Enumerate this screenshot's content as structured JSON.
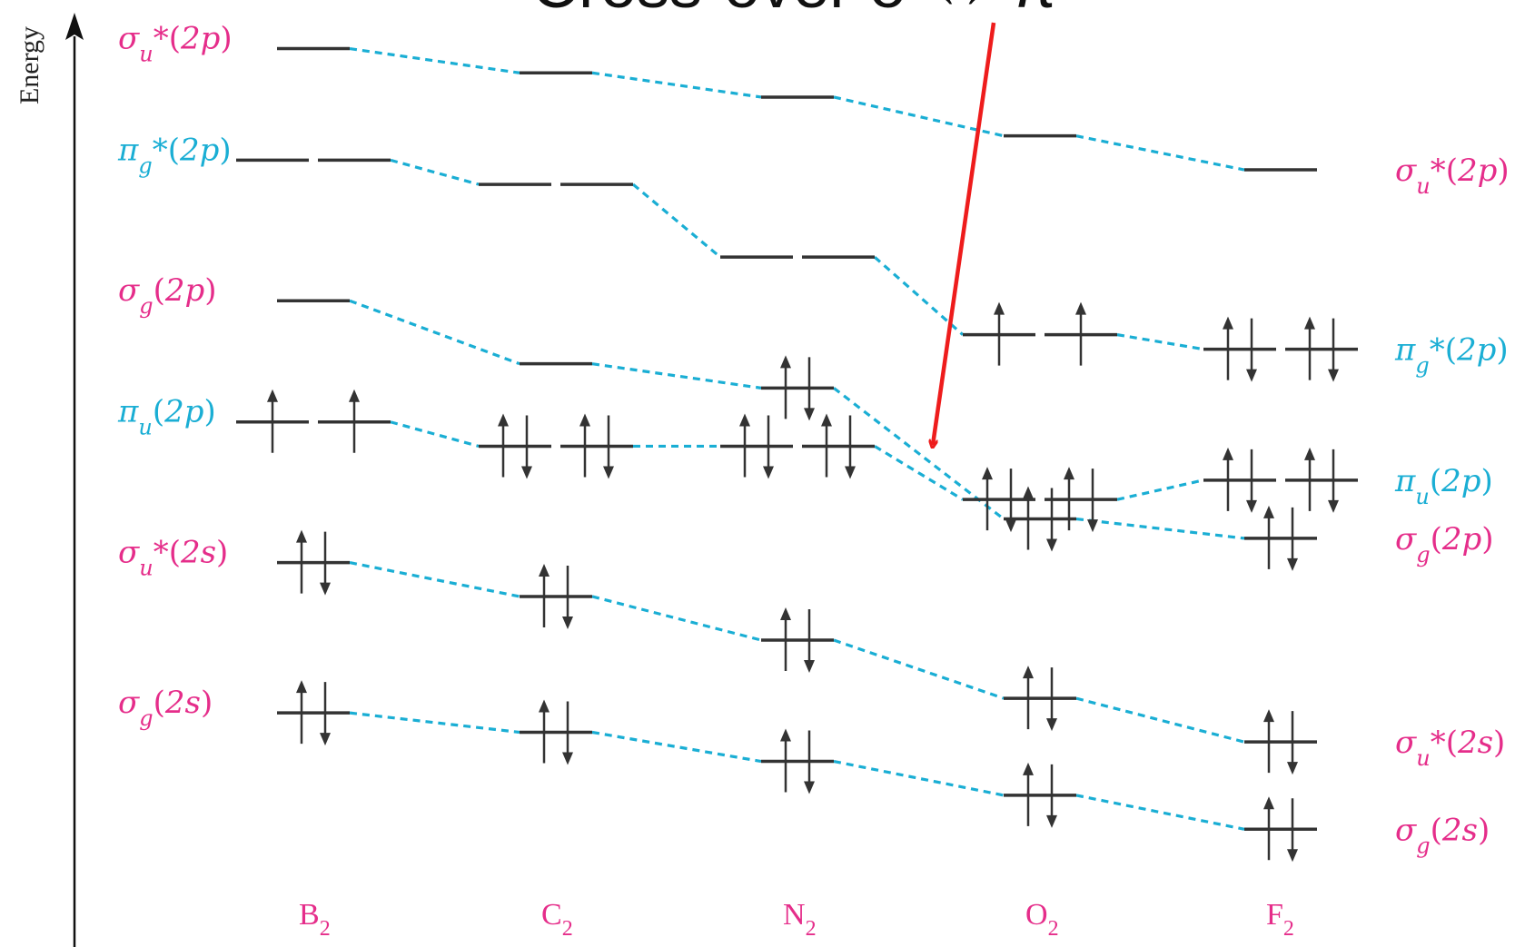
{
  "axis_title": "Energy",
  "banner_text": "Cross-over σ ↔ π",
  "colors": {
    "sigma": "#e52d8a",
    "pi": "#1aaed4",
    "level": "#333333",
    "connector": "#1aaed4",
    "arrow": "#ee1c1c"
  },
  "molecules": [
    {
      "name": "B",
      "subscript": "2"
    },
    {
      "name": "C",
      "subscript": "2"
    },
    {
      "name": "N",
      "subscript": "2"
    },
    {
      "name": "O",
      "subscript": "2"
    },
    {
      "name": "F",
      "subscript": "2"
    }
  ],
  "orbitals": [
    {
      "id": "su2p",
      "kind": "sigma",
      "degenerate": false,
      "label": {
        "sym": "σ",
        "sub": "u",
        "star": "*",
        "arg": "2p"
      },
      "energies": [
        16.6,
        16.1,
        15.6,
        14.8,
        14.1
      ],
      "electrons": [
        0,
        0,
        0,
        0,
        0
      ]
    },
    {
      "id": "pg2p",
      "kind": "pi",
      "degenerate": true,
      "label": {
        "sym": "π",
        "sub": "g",
        "star": "*",
        "arg": "2p"
      },
      "energies": [
        14.3,
        13.8,
        12.3,
        10.7,
        10.4
      ],
      "electrons": [
        0,
        0,
        0,
        2,
        4
      ]
    },
    {
      "id": "sg2p",
      "kind": "sigma",
      "degenerate": false,
      "label": {
        "sym": "σ",
        "sub": "g",
        "star": "",
        "arg": "2p"
      },
      "energies": [
        11.4,
        10.1,
        9.6,
        6.9,
        6.5
      ],
      "electrons": [
        0,
        0,
        2,
        2,
        2
      ]
    },
    {
      "id": "pu2p",
      "kind": "pi",
      "degenerate": true,
      "label": {
        "sym": "π",
        "sub": "u",
        "star": "",
        "arg": "2p"
      },
      "energies": [
        8.9,
        8.4,
        8.4,
        7.3,
        7.7
      ],
      "electrons": [
        2,
        4,
        4,
        4,
        4
      ]
    },
    {
      "id": "su2s",
      "kind": "sigma",
      "degenerate": false,
      "label": {
        "sym": "σ",
        "sub": "u",
        "star": "*",
        "arg": "2s"
      },
      "energies": [
        6.0,
        5.3,
        4.4,
        3.2,
        2.3
      ],
      "electrons": [
        2,
        2,
        2,
        2,
        2
      ]
    },
    {
      "id": "sg2s",
      "kind": "sigma",
      "degenerate": false,
      "label": {
        "sym": "σ",
        "sub": "g",
        "star": "",
        "arg": "2s"
      },
      "energies": [
        2.9,
        2.5,
        1.9,
        1.2,
        0.5
      ],
      "electrons": [
        2,
        2,
        2,
        2,
        2
      ]
    }
  ],
  "left_labels": [
    "su2p",
    "pg2p",
    "sg2p",
    "pu2p",
    "su2s",
    "sg2s"
  ],
  "right_labels": [
    "su2p",
    "pg2p",
    "pu2p",
    "sg2p",
    "su2s",
    "sg2s"
  ]
}
